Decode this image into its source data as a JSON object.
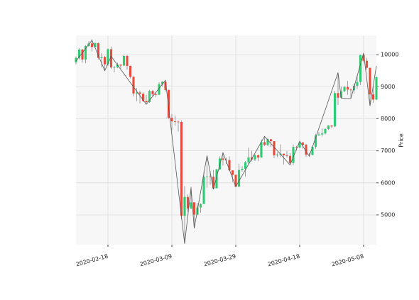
{
  "chart_data": {
    "type": "candlestick",
    "y_label": "Price",
    "x": [
      "2020-02-08",
      "2020-02-09",
      "2020-02-10",
      "2020-02-11",
      "2020-02-12",
      "2020-02-13",
      "2020-02-14",
      "2020-02-15",
      "2020-02-16",
      "2020-02-17",
      "2020-02-18",
      "2020-02-19",
      "2020-02-20",
      "2020-02-21",
      "2020-02-22",
      "2020-02-23",
      "2020-02-24",
      "2020-02-25",
      "2020-02-26",
      "2020-02-27",
      "2020-02-28",
      "2020-02-29",
      "2020-03-01",
      "2020-03-02",
      "2020-03-03",
      "2020-03-04",
      "2020-03-05",
      "2020-03-06",
      "2020-03-07",
      "2020-03-08",
      "2020-03-09",
      "2020-03-10",
      "2020-03-11",
      "2020-03-12",
      "2020-03-13",
      "2020-03-14",
      "2020-03-15",
      "2020-03-16",
      "2020-03-17",
      "2020-03-18",
      "2020-03-19",
      "2020-03-20",
      "2020-03-21",
      "2020-03-22",
      "2020-03-23",
      "2020-03-24",
      "2020-03-25",
      "2020-03-26",
      "2020-03-27",
      "2020-03-28",
      "2020-03-29",
      "2020-03-30",
      "2020-03-31",
      "2020-04-01",
      "2020-04-02",
      "2020-04-03",
      "2020-04-04",
      "2020-04-05",
      "2020-04-06",
      "2020-04-07",
      "2020-04-08",
      "2020-04-09",
      "2020-04-10",
      "2020-04-11",
      "2020-04-12",
      "2020-04-13",
      "2020-04-14",
      "2020-04-15",
      "2020-04-16",
      "2020-04-17",
      "2020-04-18",
      "2020-04-19",
      "2020-04-20",
      "2020-04-21",
      "2020-04-22",
      "2020-04-23",
      "2020-04-24",
      "2020-04-25",
      "2020-04-26",
      "2020-04-27",
      "2020-04-28",
      "2020-04-29",
      "2020-04-30",
      "2020-05-01",
      "2020-05-02",
      "2020-05-03",
      "2020-05-04",
      "2020-05-05",
      "2020-05-06",
      "2020-05-07",
      "2020-05-08",
      "2020-05-09",
      "2020-05-10",
      "2020-05-11",
      "2020-05-12"
    ],
    "open": [
      9760,
      9900,
      10160,
      9850,
      10270,
      10350,
      10240,
      10360,
      9900,
      9930,
      9700,
      10170,
      9600,
      9610,
      9690,
      9660,
      9960,
      9650,
      9310,
      8790,
      8820,
      8780,
      8560,
      8520,
      8870,
      8760,
      8750,
      9080,
      9150,
      8900,
      8030,
      7920,
      7910,
      7900,
      4970,
      5560,
      5200,
      5390,
      5010,
      5230,
      5340,
      6190,
      6200,
      6190,
      5830,
      6420,
      6760,
      6720,
      6710,
      6390,
      6250,
      5880,
      6400,
      6440,
      6640,
      6790,
      6730,
      6860,
      6790,
      7270,
      7180,
      7360,
      7300,
      6860,
      6880,
      6910,
      6860,
      6840,
      6620,
      7120,
      7100,
      7260,
      7190,
      6880,
      6870,
      7120,
      7480,
      7510,
      7540,
      7680,
      7790,
      7760,
      8800,
      8660,
      8860,
      8990,
      8910,
      8890,
      9030,
      9150,
      9990,
      9810,
      9590,
      8760,
      8600
    ],
    "high": [
      9950,
      10200,
      10180,
      10300,
      10420,
      10480,
      10390,
      10380,
      10050,
      9960,
      10200,
      10250,
      9650,
      9750,
      9700,
      9980,
      9990,
      9660,
      9330,
      8960,
      8880,
      8820,
      8750,
      8900,
      8900,
      8830,
      9140,
      9180,
      9200,
      8910,
      8150,
      8100,
      7950,
      7950,
      5900,
      5640,
      5880,
      5390,
      5370,
      5360,
      6340,
      6850,
      6380,
      6400,
      6440,
      6830,
      6940,
      6790,
      6830,
      6390,
      6260,
      6600,
      6520,
      6680,
      7100,
      7000,
      6900,
      6880,
      7360,
      7450,
      7400,
      7370,
      7300,
      6950,
      7200,
      6910,
      6990,
      6930,
      7200,
      7150,
      7300,
      7270,
      7220,
      6940,
      7150,
      7530,
      7590,
      7700,
      7700,
      7800,
      7800,
      8870,
      9440,
      9000,
      9020,
      9180,
      8950,
      9100,
      9360,
      10000,
      10050,
      9900,
      9590,
      9000,
      9320
    ],
    "low": [
      9700,
      9850,
      9750,
      9730,
      10250,
      10100,
      10200,
      9850,
      9600,
      9500,
      9650,
      9550,
      9450,
      9580,
      9570,
      9650,
      9530,
      9260,
      8700,
      8550,
      8480,
      8520,
      8450,
      8500,
      8680,
      8680,
      8740,
      9010,
      8850,
      8000,
      7650,
      7780,
      7600,
      4860,
      4100,
      5090,
      5180,
      4580,
      4990,
      5070,
      5340,
      5850,
      5940,
      5800,
      5830,
      6400,
      6540,
      6600,
      6380,
      6030,
      5880,
      5860,
      6350,
      6200,
      6600,
      6670,
      6680,
      6680,
      6780,
      7150,
      7150,
      7120,
      6770,
      6800,
      6810,
      6570,
      6790,
      6600,
      6560,
      7010,
      7080,
      7070,
      6820,
      6830,
      6860,
      7060,
      7470,
      7450,
      7510,
      7650,
      7700,
      7740,
      8430,
      8640,
      8830,
      8750,
      8630,
      8780,
      8940,
      9050,
      9760,
      9530,
      8400,
      8500,
      8580
    ],
    "close": [
      9900,
      10160,
      9850,
      10270,
      10350,
      10240,
      10360,
      9900,
      9930,
      9700,
      10170,
      9600,
      9610,
      9690,
      9660,
      9960,
      9650,
      9310,
      8790,
      8820,
      8780,
      8560,
      8520,
      8870,
      8760,
      8750,
      9080,
      9150,
      8900,
      8030,
      7920,
      7910,
      7900,
      4970,
      5560,
      5200,
      5390,
      5010,
      5230,
      5340,
      6190,
      6200,
      6190,
      5830,
      6420,
      6760,
      6720,
      6710,
      6390,
      6250,
      5880,
      6400,
      6440,
      6640,
      6790,
      6730,
      6860,
      6790,
      7270,
      7180,
      7360,
      7300,
      6860,
      6880,
      6910,
      6860,
      6840,
      6620,
      7120,
      7100,
      7260,
      7190,
      6880,
      6870,
      7120,
      7480,
      7510,
      7540,
      7680,
      7790,
      7760,
      8800,
      8660,
      8860,
      8990,
      8910,
      8890,
      9030,
      9150,
      9990,
      9810,
      9590,
      8760,
      8600,
      9300
    ],
    "up_color": "#2ecc71",
    "down_color": "#e74c3c",
    "zigzag": {
      "color": "#555555",
      "x": [
        "2020-02-08",
        "2020-02-13",
        "2020-02-17",
        "2020-02-19",
        "2020-03-01",
        "2020-03-07",
        "2020-03-13",
        "2020-03-15",
        "2020-03-16",
        "2020-03-20",
        "2020-03-22",
        "2020-03-25",
        "2020-03-29",
        "2020-04-07",
        "2020-04-15",
        "2020-04-18",
        "2020-04-21",
        "2020-04-30",
        "2020-05-01",
        "2020-05-04",
        "2020-05-08",
        "2020-05-10",
        "2020-05-12"
      ],
      "values": [
        9800,
        10450,
        9500,
        9950,
        8450,
        9200,
        4100,
        5850,
        4580,
        6850,
        5800,
        6940,
        5880,
        7450,
        6560,
        7300,
        6830,
        9440,
        8640,
        8630,
        10050,
        8400,
        9650
      ]
    },
    "xlim": [
      "2020-02-08",
      "2020-05-12"
    ],
    "xticks": [
      "2020-02-18",
      "2020-03-09",
      "2020-03-29",
      "2020-04-18",
      "2020-05-08"
    ],
    "ylim": [
      4070,
      10600
    ],
    "yticks": [
      5000,
      6000,
      7000,
      8000,
      9000,
      10000
    ],
    "grid": true
  }
}
